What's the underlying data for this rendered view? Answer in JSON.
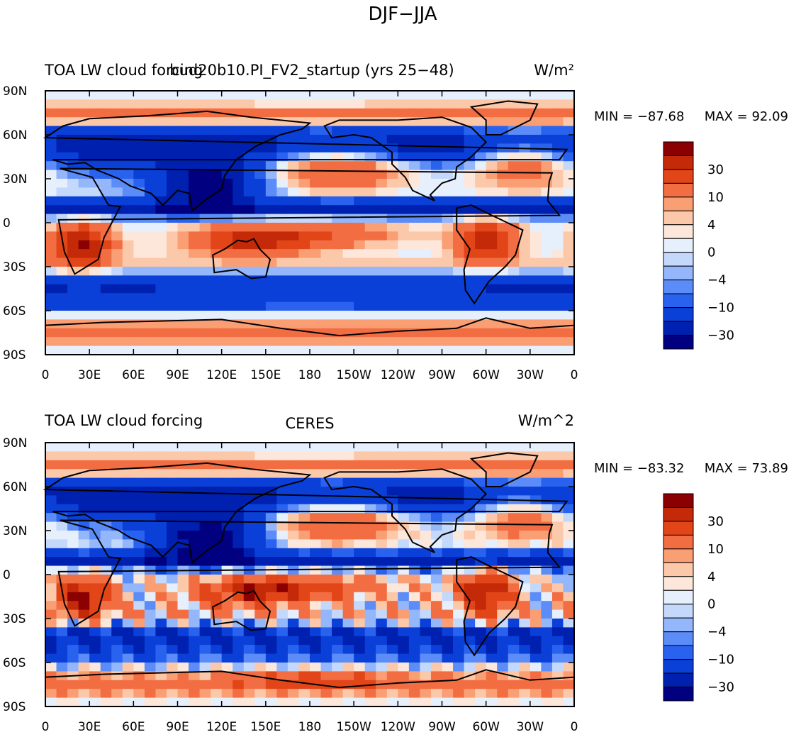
{
  "figure": {
    "title": "DJF−JJA"
  },
  "colors": {
    "scale": [
      "#000080",
      "#0020b0",
      "#0b40d8",
      "#2a62f0",
      "#5c8cf8",
      "#94b6fa",
      "#c4d8fb",
      "#e6effc",
      "#fde7da",
      "#fcc8aa",
      "#fa9e74",
      "#f26e42",
      "#e24518",
      "#c42a08",
      "#8b0000"
    ],
    "land_outline": "#000000"
  },
  "chart_data": [
    {
      "type": "heatmap",
      "title_left": "TOA LW cloud forcing",
      "title_center": "bud20b10.PI_FV2_startup (yrs 25−48)",
      "units": "W/m²",
      "stats": {
        "min_label": "MIN = −87.68",
        "max_label": "MAX =  92.09",
        "min": -87.68,
        "max": 92.09
      },
      "xlabel_ticks": [
        "0",
        "30E",
        "60E",
        "90E",
        "120E",
        "150E",
        "180",
        "150W",
        "120W",
        "90W",
        "60W",
        "30W",
        "0"
      ],
      "ylabel_ticks": [
        "90N",
        "60N",
        "30N",
        "0",
        "30S",
        "60S",
        "90S"
      ],
      "x_range": [
        0,
        360
      ],
      "y_range": [
        -90,
        90
      ],
      "colorbar_levels": [
        -50,
        -40,
        -30,
        -20,
        -10,
        -7,
        -4,
        -2,
        0,
        2,
        4,
        7,
        10,
        20,
        30,
        40,
        50
      ],
      "colorbar_labels": [
        "30",
        "10",
        "4",
        "0",
        "−4",
        "−10",
        "−30"
      ]
    },
    {
      "type": "heatmap",
      "title_left": "TOA LW cloud forcing",
      "title_center": "CERES",
      "units": "W/m^2",
      "stats": {
        "min_label": "MIN = −83.32",
        "max_label": "MAX =  73.89",
        "min": -83.32,
        "max": 73.89
      },
      "xlabel_ticks": [
        "0",
        "30E",
        "60E",
        "90E",
        "120E",
        "150E",
        "180",
        "150W",
        "120W",
        "90W",
        "60W",
        "30W",
        "0"
      ],
      "ylabel_ticks": [
        "90N",
        "60N",
        "30N",
        "0",
        "30S",
        "60S",
        "90S"
      ],
      "x_range": [
        0,
        360
      ],
      "y_range": [
        -90,
        90
      ],
      "colorbar_levels": [
        -50,
        -40,
        -30,
        -20,
        -10,
        -7,
        -4,
        -2,
        0,
        2,
        4,
        7,
        10,
        20,
        30,
        40,
        50
      ],
      "colorbar_labels": [
        "30",
        "10",
        "4",
        "0",
        "−4",
        "−10",
        "−30"
      ]
    }
  ]
}
